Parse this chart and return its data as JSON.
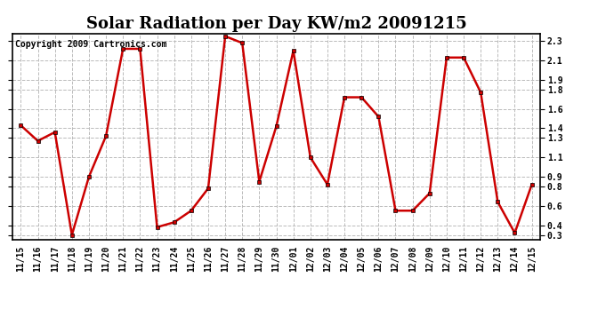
{
  "title": "Solar Radiation per Day KW/m2 20091215",
  "copyright": "Copyright 2009 Cartronics.com",
  "labels": [
    "11/15",
    "11/16",
    "11/17",
    "11/18",
    "11/19",
    "11/20",
    "11/21",
    "11/22",
    "11/23",
    "11/24",
    "11/25",
    "11/26",
    "11/27",
    "11/28",
    "11/29",
    "11/30",
    "12/01",
    "12/02",
    "12/03",
    "12/04",
    "12/05",
    "12/06",
    "12/07",
    "12/08",
    "12/09",
    "12/10",
    "12/11",
    "12/12",
    "12/13",
    "12/14",
    "12/15"
  ],
  "values": [
    1.43,
    1.27,
    1.36,
    0.3,
    0.9,
    1.32,
    2.22,
    2.22,
    0.38,
    0.43,
    0.55,
    0.78,
    2.35,
    2.28,
    0.85,
    1.42,
    2.2,
    1.1,
    0.82,
    1.72,
    1.72,
    1.52,
    0.55,
    0.55,
    0.73,
    2.13,
    2.13,
    1.77,
    0.64,
    0.32,
    0.82
  ],
  "line_color": "#cc0000",
  "marker": "s",
  "marker_size": 3,
  "bg_color": "#ffffff",
  "plot_bg_color": "#ffffff",
  "grid_color": "#bbbbbb",
  "grid_style": "--",
  "ylim": [
    0.25,
    2.38
  ],
  "yticks": [
    0.3,
    0.4,
    0.6,
    0.8,
    0.9,
    1.1,
    1.3,
    1.4,
    1.6,
    1.8,
    1.9,
    2.1,
    2.3
  ],
  "title_fontsize": 13,
  "tick_fontsize": 7,
  "copyright_fontsize": 7,
  "line_width": 1.8
}
